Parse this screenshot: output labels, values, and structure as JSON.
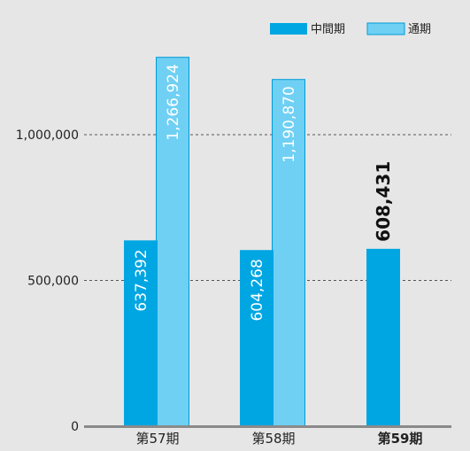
{
  "colors": {
    "background": "#e6e6e7",
    "interim": "#00a6e2",
    "full_year": "#6fd0f4",
    "full_year_border": "#009bd6",
    "grid": "#555555",
    "baseline": "#8a8a8a"
  },
  "chart_data": {
    "type": "bar",
    "categories": [
      "第57期",
      "第58期",
      "第59期"
    ],
    "category_bold": [
      false,
      false,
      true
    ],
    "series": [
      {
        "name": "中間期",
        "values": [
          637392,
          604268,
          608431
        ],
        "labels": [
          "637,392",
          "604,268",
          "608,431"
        ]
      },
      {
        "name": "通期",
        "values": [
          1266924,
          1190870,
          null
        ],
        "labels": [
          "1,266,924",
          "1,190,870",
          ""
        ]
      }
    ],
    "ylim": [
      0,
      1400000
    ],
    "yticks": [
      0,
      500000,
      1000000
    ],
    "ytick_labels": [
      "0",
      "500,000",
      "1,000,000"
    ],
    "grid": "dashed",
    "legend_position": "top-right",
    "title": "",
    "xlabel": "",
    "ylabel": ""
  }
}
